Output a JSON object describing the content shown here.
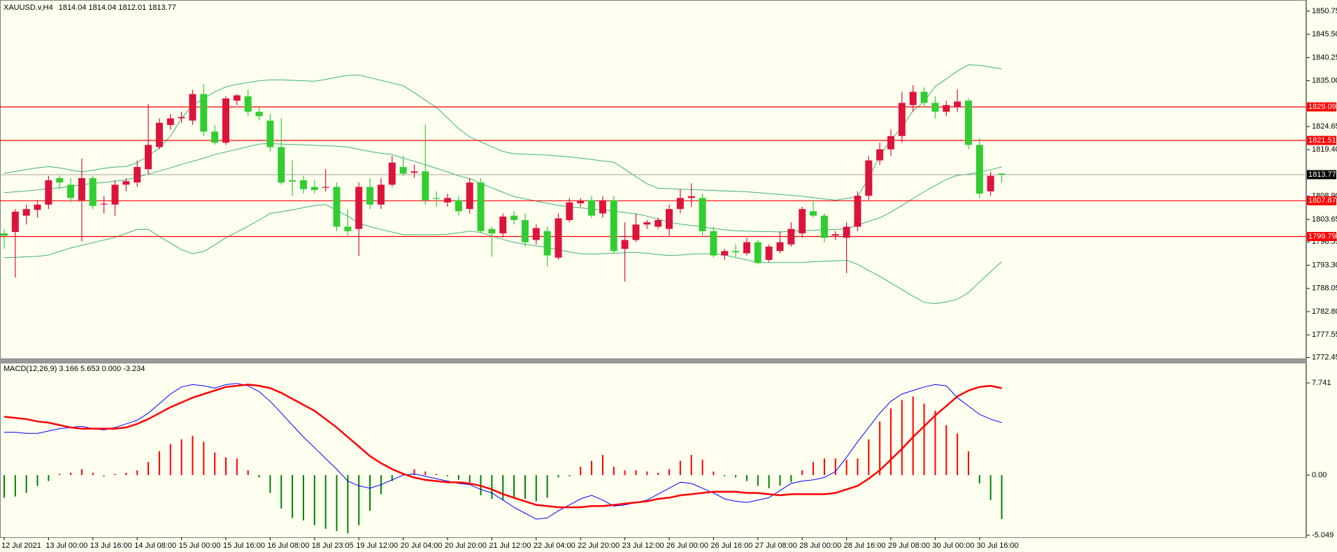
{
  "chart_data": [
    {
      "type": "candlestick",
      "title": "XAUUSD.v,H4",
      "subtitle": "1814.04 1814.04 1812.01 1813.77",
      "categories": [
        "12 Jul 2021",
        null,
        null,
        null,
        "13 Jul 00:00",
        null,
        null,
        null,
        "13 Jul 16:00",
        null,
        null,
        null,
        "14 Jul 08:00",
        null,
        null,
        null,
        "15 Jul 00:00",
        null,
        null,
        null,
        "15 Jul 16:00",
        null,
        null,
        null,
        "16 Jul 08:00",
        null,
        null,
        null,
        "18 Jul 23:05",
        null,
        null,
        null,
        "19 Jul 12:00",
        null,
        null,
        null,
        "20 Jul 04:00",
        null,
        null,
        null,
        "20 Jul 20:00",
        null,
        null,
        null,
        "21 Jul 12:00",
        null,
        null,
        null,
        "22 Jul 04:00",
        null,
        null,
        null,
        "22 Jul 20:00",
        null,
        null,
        null,
        "23 Jul 12:00",
        null,
        null,
        null,
        "26 Jul 00:00",
        null,
        null,
        null,
        "26 Jul 16:00",
        null,
        null,
        null,
        "27 Jul 08:00",
        null,
        null,
        null,
        "28 Jul 00:00",
        null,
        null,
        null,
        "28 Jul 16:00",
        null,
        null,
        null,
        "29 Jul 08:00",
        null,
        null,
        null,
        "30 Jul 00:00",
        null,
        null,
        null,
        "30 Jul 16:00",
        null,
        null
      ],
      "open": [
        1800.5,
        1800.8,
        1804.5,
        1805.8,
        1807,
        1813,
        1811.5,
        1808,
        1813,
        1807,
        1807,
        1811.5,
        1812,
        1815,
        1820,
        1825,
        1826.5,
        1826,
        1832,
        1823.5,
        1821,
        1830.5,
        1831.5,
        1828,
        1826,
        1820,
        1812.5,
        1812.5,
        1811,
        1811,
        1811,
        1802,
        1801.5,
        1811,
        1807,
        1811.5,
        1815.5,
        1814.2,
        1814.5,
        1808.5,
        1807.5,
        1808,
        1806,
        1812,
        1801.5,
        1800.5,
        1804.5,
        1803.5,
        1799,
        1801,
        1795,
        1803.5,
        1807.3,
        1808,
        1805,
        1808,
        1797,
        1799,
        1802.5,
        1802,
        1801.5,
        1806,
        1808.5,
        1808.5,
        1801,
        1795.5,
        1796.5,
        1796,
        1798.5,
        1794.5,
        1796.5,
        1798,
        1800.5,
        1805.5,
        1804.5,
        1800,
        1799.5,
        1802,
        1809,
        1817,
        1819.5,
        1822.5,
        1829.5,
        1832.5,
        1830,
        1828,
        1829,
        1830.5,
        1820.5,
        1810,
        1814.04
      ],
      "high": [
        1801.5,
        1806,
        1807,
        1808,
        1813.5,
        1813.5,
        1813,
        1817.4,
        1813.5,
        1809,
        1812.5,
        1813,
        1817,
        1829.7,
        1826.5,
        1827.5,
        1828,
        1833,
        1834.3,
        1825,
        1831.5,
        1832,
        1833,
        1829,
        1827.5,
        1826.6,
        1817,
        1813.5,
        1812.5,
        1815,
        1812,
        1806,
        1812,
        1813,
        1813,
        1818,
        1818,
        1816,
        1825.1,
        1810,
        1809.5,
        1809,
        1813,
        1813,
        1802,
        1805,
        1805.5,
        1805,
        1802.5,
        1802,
        1805,
        1808.5,
        1808.5,
        1809,
        1808.9,
        1808.9,
        1803,
        1805,
        1803.5,
        1804,
        1807,
        1810.5,
        1811.8,
        1809.5,
        1802,
        1797,
        1798,
        1799.5,
        1799,
        1798,
        1801,
        1803,
        1806.5,
        1808,
        1805,
        1801,
        1803,
        1810,
        1818,
        1821,
        1824,
        1832.5,
        1834,
        1833.5,
        1831.5,
        1830.5,
        1833,
        1831,
        1822,
        1814.5,
        1814.04
      ],
      "low": [
        1797,
        1790.5,
        1802.5,
        1804,
        1806,
        1810.5,
        1807.5,
        1798.7,
        1806,
        1805,
        1804.5,
        1810,
        1811,
        1814,
        1819.5,
        1824,
        1825.5,
        1825,
        1822.5,
        1820.5,
        1820.5,
        1829.5,
        1827,
        1826,
        1819,
        1811.5,
        1809,
        1809.5,
        1809.5,
        1810,
        1801,
        1800,
        1795.4,
        1806,
        1806,
        1811,
        1813.5,
        1813,
        1807,
        1806.5,
        1806.5,
        1804.5,
        1805,
        1800.5,
        1795.2,
        1799.5,
        1802.5,
        1797.5,
        1798,
        1793,
        1794.5,
        1803,
        1806.5,
        1804,
        1804,
        1796,
        1789.6,
        1798.5,
        1801.5,
        1801.5,
        1800,
        1805,
        1806.5,
        1800,
        1795,
        1794.5,
        1795,
        1795.5,
        1793.5,
        1794,
        1796,
        1797.5,
        1799.5,
        1804,
        1798.5,
        1799,
        1791.5,
        1801,
        1808,
        1816,
        1818,
        1821,
        1828,
        1829,
        1826.5,
        1827,
        1828,
        1819.5,
        1808.5,
        1809,
        1812.01
      ],
      "close": [
        1800,
        1805.4,
        1806,
        1807,
        1812.5,
        1812,
        1808.5,
        1813,
        1806.7,
        1807.2,
        1811.5,
        1812.3,
        1815.5,
        1820.5,
        1825.5,
        1826.5,
        1826.8,
        1832,
        1823.5,
        1821,
        1831,
        1831.7,
        1828,
        1827,
        1820,
        1812,
        1812.2,
        1810.5,
        1810.3,
        1811,
        1802,
        1801,
        1811,
        1807,
        1811.5,
        1816.5,
        1814,
        1814.5,
        1808,
        1808.4,
        1808.5,
        1805.5,
        1812,
        1801,
        1800.5,
        1804.3,
        1803.5,
        1798.5,
        1801.7,
        1795.5,
        1803.9,
        1807.5,
        1807.8,
        1804.5,
        1808,
        1796.5,
        1799,
        1802.5,
        1803,
        1803.5,
        1806,
        1808.5,
        1808.9,
        1801,
        1795.5,
        1796.5,
        1796.2,
        1798.5,
        1793.8,
        1797.5,
        1798.5,
        1801.5,
        1806,
        1804.5,
        1799.5,
        1800.3,
        1802,
        1809,
        1817,
        1819.5,
        1822.5,
        1830,
        1832.5,
        1830,
        1828,
        1829.5,
        1830.3,
        1820.5,
        1809.5,
        1813.5,
        1813.77
      ],
      "up_color": "#dc143c",
      "down_color": "#32cd32",
      "overlays": [
        {
          "color": "#3cb371",
          "values": [
            1814.1,
            1814.5,
            1814.9,
            1815.3,
            1815.6,
            1815.3,
            1814.8,
            1814.4,
            1814.8,
            1815.2,
            1815.5,
            1815.6,
            1816.5,
            1818,
            1819.8,
            1822.5,
            1826.5,
            1829.5,
            1831,
            1832.5,
            1833.6,
            1834.2,
            1834.6,
            1835,
            1835.2,
            1835.2,
            1835.1,
            1835,
            1834.9,
            1835.3,
            1835.8,
            1836.2,
            1836.3,
            1835.7,
            1835.1,
            1834.5,
            1833.9,
            1832.3,
            1830.6,
            1829,
            1826.6,
            1824.2,
            1822.3,
            1821.2,
            1820.1,
            1819,
            1818.5,
            1818.4,
            1818.3,
            1818.2,
            1818,
            1817.8,
            1817.5,
            1817.2,
            1816.9,
            1816.6,
            1815,
            1813.3,
            1811.7,
            1810.7,
            1810.6,
            1810.5,
            1810.4,
            1810.3,
            1810.2,
            1810.1,
            1810,
            1809.9,
            1809.7,
            1809.5,
            1809.3,
            1809.1,
            1808.9,
            1808.6,
            1808.3,
            1808,
            1808.4,
            1808.8,
            1813,
            1818,
            1821.6,
            1824.5,
            1828.2,
            1830.3,
            1833.7,
            1835.4,
            1837.2,
            1838.6,
            1838.5,
            1838.1,
            1837.7
          ]
        },
        {
          "color": "#3cb371",
          "values": [
            1809.7,
            1809.9,
            1810.1,
            1810.3,
            1810.6,
            1810.8,
            1811.1,
            1811.5,
            1811.8,
            1812,
            1812.3,
            1812.6,
            1813.2,
            1813.9,
            1814.6,
            1815.3,
            1816.1,
            1816.8,
            1817.5,
            1818.3,
            1818.9,
            1819.5,
            1820.1,
            1820.7,
            1820.8,
            1820.7,
            1820.6,
            1820.5,
            1820.4,
            1820.3,
            1820.2,
            1820,
            1819.5,
            1819,
            1818.6,
            1818.3,
            1817.5,
            1816.8,
            1816,
            1815.2,
            1814.4,
            1813.5,
            1812.9,
            1811.8,
            1810.8,
            1809.8,
            1808.8,
            1808.3,
            1807.8,
            1807.3,
            1806.8,
            1806.5,
            1806.3,
            1806,
            1805.8,
            1805.5,
            1805.2,
            1804.9,
            1804.4,
            1803.7,
            1803,
            1802.6,
            1802.3,
            1802,
            1801.6,
            1801.3,
            1801.1,
            1801,
            1800.9,
            1800.9,
            1800.8,
            1801,
            1801.1,
            1801.2,
            1801.3,
            1801.4,
            1801.5,
            1802.4,
            1803.2,
            1804,
            1805.3,
            1806.8,
            1808.4,
            1809.9,
            1811.3,
            1812.7,
            1813.6,
            1813.9,
            1814.3,
            1814.9,
            1815.5
          ]
        },
        {
          "color": "#3cb371",
          "values": [
            1795,
            1795.1,
            1795.2,
            1795.3,
            1795.6,
            1796.4,
            1797.2,
            1797.8,
            1798.4,
            1799,
            1799.6,
            1800.5,
            1801.4,
            1801.4,
            1799.8,
            1798.3,
            1796.8,
            1795.9,
            1796.4,
            1797.9,
            1799.5,
            1800.8,
            1802.1,
            1803.5,
            1805,
            1805.4,
            1805.8,
            1806.3,
            1806.8,
            1807,
            1805.7,
            1804.4,
            1802.8,
            1802,
            1801.4,
            1800.8,
            1800.2,
            1800.2,
            1800.2,
            1800.2,
            1800.3,
            1800.6,
            1801,
            1800.7,
            1799.9,
            1799.1,
            1798.5,
            1798,
            1797.7,
            1797.3,
            1796.8,
            1796.3,
            1795.9,
            1795.8,
            1795.9,
            1796,
            1796.1,
            1796.2,
            1796,
            1795.7,
            1795.5,
            1795.6,
            1795.8,
            1795.9,
            1795.9,
            1795.6,
            1795,
            1794.5,
            1793.9,
            1793.9,
            1793.9,
            1793.9,
            1793.9,
            1794.1,
            1794.2,
            1794.3,
            1794.4,
            1793.5,
            1792.1,
            1790.8,
            1789.3,
            1787.8,
            1786.3,
            1784.9,
            1784.6,
            1785,
            1785.6,
            1787.1,
            1789.5,
            1791.8,
            1794.1
          ]
        }
      ],
      "levels": [
        {
          "value": 1829.09,
          "color": "#ff0000"
        },
        {
          "value": 1821.51,
          "color": "#ff0000"
        },
        {
          "value": 1807.87,
          "color": "#ff0000"
        },
        {
          "value": 1799.79,
          "color": "#ff0000"
        }
      ],
      "last_price": {
        "value": 1813.77,
        "color": "#a0a0a0"
      },
      "ylim": [
        1772.06,
        1853.26
      ],
      "yticks": [
        1850.75,
        {
          "value": 1845.5,
          "label": "1845.50"
        },
        1840.25,
        {
          "value": 1835,
          "label": "1835.00"
        },
        1824.65,
        {
          "value": 1819.4,
          "label": "1819.40"
        },
        {
          "value": 1808.9,
          "label": "1808.90"
        },
        1803.65,
        1798.55,
        {
          "value": 1793.3,
          "label": "1793.30"
        },
        1788.05,
        {
          "value": 1782.8,
          "label": "1782.80"
        },
        1777.55,
        1772.45
      ]
    },
    {
      "type": "combo",
      "title": "MACD(12,26,9) 3.166 5.653 0.000 -3.234",
      "histogram": {
        "up_color": "#ff0000",
        "down_color": "#008000",
        "values": [
          -1.9,
          -1.8,
          -1.5,
          -0.9,
          -0.5,
          0.1,
          0.2,
          0.5,
          0.2,
          -0.1,
          0.1,
          0.2,
          0.4,
          1.1,
          2.0,
          2.6,
          3.0,
          3.3,
          2.8,
          1.9,
          1.5,
          1.4,
          0.4,
          -0.2,
          -1.5,
          -2.8,
          -3.6,
          -3.8,
          -4.2,
          -4.5,
          -4.7,
          -4.9,
          -4.2,
          -3.0,
          -1.6,
          -0.5,
          0.2,
          0.5,
          0.3,
          0.1,
          -0.1,
          -0.4,
          -0.6,
          -1.7,
          -2.0,
          -2.1,
          -2.0,
          -2.0,
          -2.2,
          -1.9,
          -0.2,
          -0.1,
          0.7,
          1.2,
          1.7,
          0.7,
          0.4,
          0.4,
          0.3,
          0.2,
          0.5,
          1.2,
          1.7,
          1.3,
          0.3,
          -0.1,
          -0.2,
          -0.5,
          -0.9,
          -1.1,
          -0.9,
          -0.6,
          0.4,
          1.1,
          1.4,
          1.4,
          1.3,
          1.4,
          3.0,
          4.5,
          5.6,
          6.3,
          6.6,
          6.0,
          5.4,
          4.2,
          3.5,
          2.0,
          -0.7,
          -2.1,
          -3.7
        ]
      },
      "lines": [
        {
          "color": "#0000ff",
          "width": 1,
          "values": [
            3.6,
            3.6,
            3.5,
            3.5,
            3.7,
            3.9,
            4.0,
            4.1,
            3.9,
            3.8,
            4.0,
            4.3,
            4.6,
            5.2,
            6.0,
            6.8,
            7.4,
            7.6,
            7.5,
            7.3,
            7.6,
            7.7,
            7.5,
            7.0,
            6.2,
            5.2,
            4.2,
            3.2,
            2.3,
            1.4,
            0.5,
            -0.5,
            -0.9,
            -1.1,
            -0.8,
            -0.4,
            0.0,
            0.1,
            -0.1,
            -0.3,
            -0.5,
            -0.7,
            -0.8,
            -1.2,
            -1.5,
            -2.1,
            -2.7,
            -3.2,
            -3.7,
            -3.6,
            -3.0,
            -2.5,
            -2.0,
            -1.7,
            -2.1,
            -2.6,
            -2.5,
            -2.3,
            -2.1,
            -1.6,
            -1.1,
            -0.6,
            -0.7,
            -1.1,
            -1.5,
            -2.0,
            -2.2,
            -2.3,
            -2.1,
            -1.9,
            -1.3,
            -0.7,
            -0.5,
            -0.4,
            -0.2,
            0.3,
            1.5,
            2.8,
            4.0,
            5.2,
            6.2,
            6.8,
            7.1,
            7.4,
            7.6,
            7.5,
            6.5,
            5.8,
            5.1,
            4.7,
            4.4
          ]
        },
        {
          "color": "#ff0000",
          "width": 2.5,
          "values": [
            4.9,
            4.8,
            4.7,
            4.5,
            4.4,
            4.2,
            4.0,
            3.9,
            3.9,
            3.9,
            3.9,
            4.0,
            4.3,
            4.7,
            5.2,
            5.7,
            6.1,
            6.5,
            6.8,
            7.1,
            7.4,
            7.5,
            7.6,
            7.5,
            7.3,
            6.9,
            6.4,
            5.9,
            5.4,
            4.7,
            4.0,
            3.2,
            2.4,
            1.6,
            1.0,
            0.5,
            0.1,
            -0.2,
            -0.4,
            -0.5,
            -0.6,
            -0.6,
            -0.7,
            -0.9,
            -1.2,
            -1.6,
            -1.9,
            -2.2,
            -2.5,
            -2.6,
            -2.7,
            -2.7,
            -2.7,
            -2.6,
            -2.6,
            -2.5,
            -2.4,
            -2.3,
            -2.2,
            -2.0,
            -1.9,
            -1.7,
            -1.6,
            -1.5,
            -1.4,
            -1.4,
            -1.4,
            -1.5,
            -1.5,
            -1.6,
            -1.7,
            -1.6,
            -1.6,
            -1.6,
            -1.6,
            -1.5,
            -1.2,
            -0.9,
            -0.3,
            0.4,
            1.3,
            2.2,
            3.2,
            4.1,
            5.0,
            5.8,
            6.6,
            7.1,
            7.4,
            7.5,
            7.3
          ]
        }
      ],
      "ylim": [
        -5.049,
        7.741
      ],
      "yticks": [
        7.741,
        {
          "value": 0,
          "label": "0.00"
        },
        -5.049
      ]
    }
  ]
}
